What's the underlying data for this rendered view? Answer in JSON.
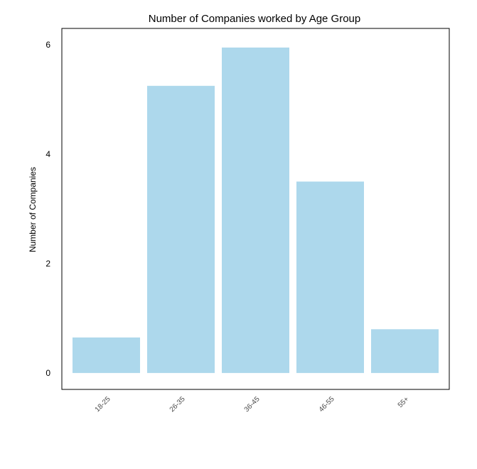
{
  "chart_data": {
    "type": "bar",
    "title": "Number of Companies worked by Age Group",
    "xlabel": "",
    "ylabel": "Number of Companies",
    "categories": [
      "18-25",
      "26-35",
      "36-45",
      "46-55",
      "55+"
    ],
    "values": [
      0.65,
      5.25,
      5.95,
      3.5,
      0.8
    ],
    "yticks": [
      0,
      2,
      4,
      6
    ],
    "ylim": [
      -0.3,
      6.3
    ],
    "bar_color": "#add8ec",
    "grid": false,
    "legend": "none"
  }
}
